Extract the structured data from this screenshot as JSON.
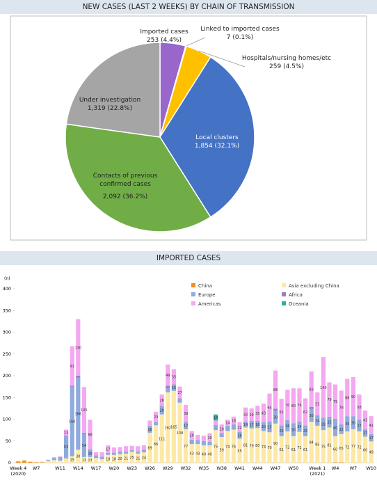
{
  "chart_data": [
    {
      "type": "pie",
      "title": "NEW CASES (LAST 2 WEEKS) BY CHAIN OF TRANSMISSION",
      "categories": [
        "Imported cases",
        "Linked to imported cases",
        "Hospitals/nursing homes/etc",
        "Local clusters",
        "Contacts of previous confirmed cases",
        "Under investigation"
      ],
      "values": [
        253,
        7,
        259,
        1854,
        2092,
        1319
      ],
      "value_labels": [
        "253 (4.4%)",
        "7 (0.1%)",
        "259 (4.5%)",
        "1,854 (32.1%)",
        "2,092 (36.2%)",
        "1,319 (22.8%)"
      ],
      "colors": [
        "#9966cc",
        "#ed7d31",
        "#ffc000",
        "#4472c4",
        "#70ad47",
        "#a5a5a5"
      ]
    },
    {
      "type": "stacked-bar",
      "title": "IMPORTED CASES",
      "y_label": "(n)",
      "categories": [
        "Week 4 (2020)",
        null,
        null,
        "W7",
        null,
        null,
        null,
        "W11",
        null,
        null,
        "W14",
        null,
        null,
        "W17",
        null,
        null,
        "W20",
        null,
        null,
        "W23",
        null,
        null,
        "W26",
        null,
        null,
        "W29",
        null,
        null,
        "W32",
        null,
        null,
        "W35",
        null,
        null,
        "W38",
        null,
        null,
        "W41",
        null,
        null,
        "W44",
        null,
        null,
        "W47",
        null,
        null,
        "W50",
        null,
        null,
        null,
        "Week 1 (2021)",
        null,
        null,
        "W4",
        null,
        null,
        "W7",
        null,
        null,
        "W10"
      ],
      "series": [
        {
          "name": "China",
          "color": "#f28e1c",
          "values": [
            3,
            5,
            2,
            1,
            1,
            0,
            0,
            0,
            0,
            0,
            0,
            0,
            0,
            0,
            0,
            0,
            0,
            0,
            0,
            0,
            0,
            0,
            0,
            0,
            0,
            0,
            0,
            0,
            0,
            0,
            0,
            0,
            0,
            0,
            0,
            0,
            0,
            0,
            0,
            0,
            0,
            0,
            0,
            0,
            0,
            0,
            0,
            0,
            0,
            0,
            0,
            0,
            0,
            1,
            1,
            0,
            0,
            0,
            0,
            0
          ]
        },
        {
          "name": "Asia excluding China",
          "color": "#fde9a6",
          "values": [
            2,
            2,
            2,
            1,
            3,
            4,
            6,
            5,
            10,
            15,
            30,
            13,
            13,
            11,
            8,
            18,
            18,
            20,
            21,
            25,
            21,
            24,
            69,
            86,
            111,
            162,
            165,
            138,
            77,
            43,
            43,
            40,
            40,
            75,
            59,
            73,
            76,
            55,
            81,
            79,
            80,
            73,
            70,
            90,
            61,
            72,
            61,
            71,
            61,
            94,
            85,
            75,
            81,
            60,
            65,
            72,
            77,
            72,
            60,
            49
          ]
        },
        {
          "name": "Europe",
          "color": "#8faadc",
          "values": [
            0,
            0,
            0,
            0,
            0,
            2,
            5,
            8,
            53,
            160,
            166,
            54,
            18,
            6,
            6,
            5,
            5,
            6,
            5,
            4,
            5,
            6,
            16,
            8,
            20,
            10,
            15,
            10,
            17,
            10,
            9,
            10,
            8,
            12,
            9,
            12,
            12,
            16,
            14,
            17,
            16,
            20,
            25,
            30,
            25,
            26,
            30,
            24,
            25,
            30,
            24,
            28,
            25,
            40,
            22,
            35,
            30,
            27,
            17,
            17
          ]
        },
        {
          "name": "Africa",
          "color": "#9e7cc1",
          "values": [
            0,
            0,
            0,
            0,
            0,
            0,
            0,
            0,
            0,
            2,
            4,
            2,
            0,
            0,
            0,
            0,
            0,
            0,
            0,
            0,
            0,
            0,
            0,
            0,
            0,
            5,
            0,
            0,
            0,
            0,
            0,
            0,
            0,
            0,
            0,
            0,
            0,
            0,
            0,
            0,
            0,
            0,
            0,
            4,
            0,
            0,
            0,
            0,
            0,
            4,
            0,
            0,
            0,
            0,
            0,
            0,
            0,
            0,
            0,
            0
          ]
        },
        {
          "name": "Americas",
          "color": "#f4a8f0",
          "values": [
            0,
            0,
            0,
            0,
            0,
            1,
            2,
            2,
            13,
            91,
            130,
            105,
            68,
            7,
            10,
            17,
            12,
            10,
            12,
            10,
            12,
            10,
            12,
            23,
            26,
            49,
            35,
            27,
            39,
            20,
            12,
            12,
            20,
            10,
            20,
            14,
            18,
            22,
            32,
            29,
            35,
            43,
            64,
            88,
            61,
            70,
            80,
            76,
            62,
            82,
            53,
            140,
            79,
            79,
            78,
            86,
            90,
            58,
            43,
            41
          ]
        },
        {
          "name": "Oceania",
          "color": "#2bb39a",
          "values": [
            0,
            0,
            0,
            0,
            0,
            0,
            0,
            0,
            0,
            0,
            0,
            0,
            0,
            0,
            0,
            0,
            0,
            0,
            0,
            0,
            0,
            0,
            0,
            0,
            0,
            0,
            0,
            0,
            0,
            0,
            0,
            0,
            0,
            14,
            0,
            0,
            0,
            0,
            0,
            0,
            0,
            0,
            0,
            0,
            0,
            0,
            0,
            0,
            0,
            0,
            0,
            0,
            0,
            0,
            0,
            0,
            0,
            0,
            0,
            0
          ]
        }
      ],
      "ylim": [
        0,
        400
      ],
      "yticks": [
        0,
        50,
        100,
        150,
        200,
        250,
        300,
        350,
        400
      ]
    }
  ]
}
